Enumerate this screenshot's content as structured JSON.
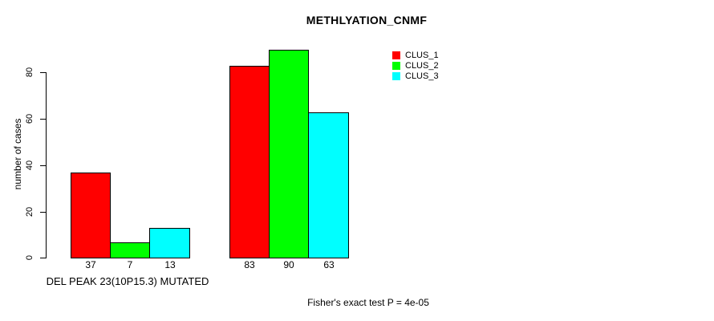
{
  "chart_data": {
    "type": "bar",
    "title": "METHLYATION_CNMF",
    "ylabel": "number of cases",
    "xlabel": "",
    "categories": [
      "DEL PEAK 23(10P15.3) MUTATED",
      ""
    ],
    "series": [
      {
        "name": "CLUS_1",
        "color": "#FF0000",
        "values": [
          37,
          83
        ]
      },
      {
        "name": "CLUS_2",
        "color": "#00FF00",
        "values": [
          7,
          90
        ]
      },
      {
        "name": "CLUS_3",
        "color": "#00FFFF",
        "values": [
          13,
          63
        ]
      }
    ],
    "bar_value_labels": [
      [
        "37",
        "7",
        "13"
      ],
      [
        "83",
        "90",
        "63"
      ]
    ],
    "y_ticks": [
      0,
      20,
      40,
      60,
      80
    ],
    "ylim": [
      0,
      90
    ],
    "grid": false,
    "legend_position": "top-right",
    "annotation": "Fisher's exact test P = 4e-05"
  }
}
